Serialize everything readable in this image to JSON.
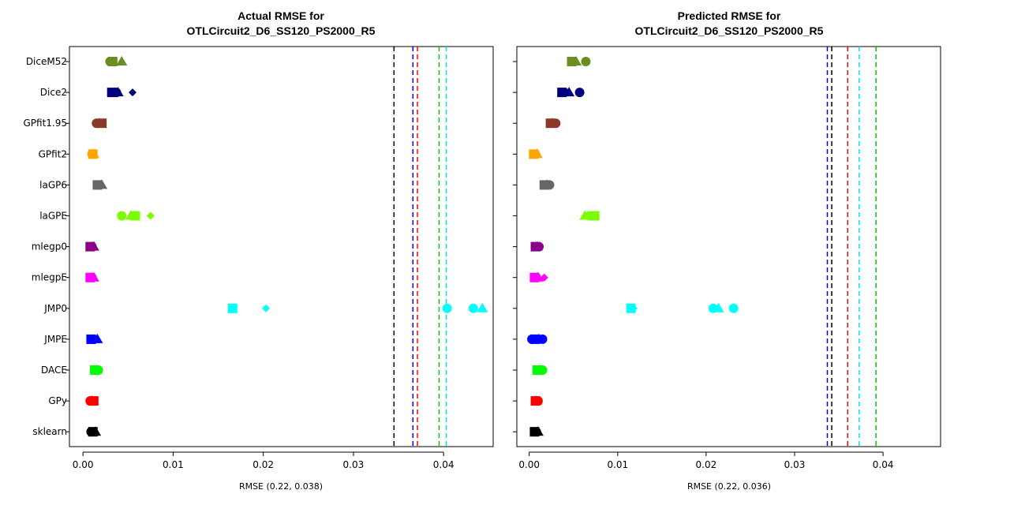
{
  "chart_data": [
    {
      "type": "scatter",
      "title": [
        "Actual RMSE for",
        "OTLCircuit2_D6_SS120_PS2000_R5"
      ],
      "xlabel": "RMSE (0.22, 0.038)",
      "ylabel": "",
      "xlim": [
        -0.0015,
        0.0455
      ],
      "xticks": [
        0.0,
        0.01,
        0.02,
        0.03,
        0.04
      ],
      "xtick_labels": [
        "0.00",
        "0.01",
        "0.02",
        "0.03",
        "0.04"
      ],
      "categories": [
        "DiceM52",
        "Dice2",
        "GPfit1.95",
        "GPfit2",
        "laGP6",
        "laGPE",
        "mlegp0",
        "mlegpE",
        "JMP0",
        "JMPE",
        "DACE",
        "GPy",
        "sklearn"
      ],
      "vlines": [
        {
          "x": 0.0345,
          "color": "#000000"
        },
        {
          "x": 0.0366,
          "color": "#0000ff"
        },
        {
          "x": 0.0371,
          "color": "#ff0000"
        },
        {
          "x": 0.0395,
          "color": "#00cc00"
        },
        {
          "x": 0.0403,
          "color": "#00e5e5"
        }
      ],
      "series": [
        {
          "category": "DiceM52",
          "color": "#6b8e23",
          "points": [
            {
              "x": 0.003,
              "shape": "circle"
            },
            {
              "x": 0.0033,
              "shape": "square"
            },
            {
              "x": 0.0043,
              "shape": "triangle"
            }
          ]
        },
        {
          "category": "Dice2",
          "color": "#00007f",
          "points": [
            {
              "x": 0.0032,
              "shape": "square"
            },
            {
              "x": 0.0037,
              "shape": "circle"
            },
            {
              "x": 0.0039,
              "shape": "triangle"
            },
            {
              "x": 0.0055,
              "shape": "diamond"
            }
          ]
        },
        {
          "category": "GPfit1.95",
          "color": "#8b3a2a",
          "points": [
            {
              "x": 0.0015,
              "shape": "circle"
            },
            {
              "x": 0.0018,
              "shape": "triangle"
            },
            {
              "x": 0.0021,
              "shape": "square"
            }
          ]
        },
        {
          "category": "GPfit2",
          "color": "#ffa500",
          "points": [
            {
              "x": 0.001,
              "shape": "circle"
            },
            {
              "x": 0.0011,
              "shape": "square"
            },
            {
              "x": 0.0012,
              "shape": "triangle"
            }
          ]
        },
        {
          "category": "laGP6",
          "color": "#666666",
          "points": [
            {
              "x": 0.0016,
              "shape": "square"
            },
            {
              "x": 0.0018,
              "shape": "circle"
            },
            {
              "x": 0.0021,
              "shape": "triangle"
            }
          ]
        },
        {
          "category": "laGPE",
          "color": "#7cfc00",
          "points": [
            {
              "x": 0.0043,
              "shape": "circle"
            },
            {
              "x": 0.0053,
              "shape": "triangle"
            },
            {
              "x": 0.0058,
              "shape": "square"
            },
            {
              "x": 0.0075,
              "shape": "diamond"
            }
          ]
        },
        {
          "category": "mlegp0",
          "color": "#8b008b",
          "points": [
            {
              "x": 0.0008,
              "shape": "square"
            },
            {
              "x": 0.001,
              "shape": "circle"
            },
            {
              "x": 0.0012,
              "shape": "triangle"
            }
          ]
        },
        {
          "category": "mlegpE",
          "color": "#ff00ff",
          "points": [
            {
              "x": 0.0008,
              "shape": "square"
            },
            {
              "x": 0.001,
              "shape": "circle"
            },
            {
              "x": 0.0012,
              "shape": "triangle"
            }
          ]
        },
        {
          "category": "JMP0",
          "color": "#00ffff",
          "points": [
            {
              "x": 0.0166,
              "shape": "square"
            },
            {
              "x": 0.0203,
              "shape": "diamond"
            },
            {
              "x": 0.0404,
              "shape": "circle"
            },
            {
              "x": 0.0433,
              "shape": "circle"
            },
            {
              "x": 0.0443,
              "shape": "triangle"
            }
          ]
        },
        {
          "category": "JMPE",
          "color": "#0000ff",
          "points": [
            {
              "x": 0.0009,
              "shape": "square"
            },
            {
              "x": 0.0012,
              "shape": "circle"
            },
            {
              "x": 0.0016,
              "shape": "triangle"
            }
          ]
        },
        {
          "category": "DACE",
          "color": "#00ff00",
          "points": [
            {
              "x": 0.0013,
              "shape": "square"
            },
            {
              "x": 0.0015,
              "shape": "triangle"
            },
            {
              "x": 0.0017,
              "shape": "circle"
            }
          ]
        },
        {
          "category": "GPy",
          "color": "#ff0000",
          "points": [
            {
              "x": 0.0008,
              "shape": "circle"
            },
            {
              "x": 0.001,
              "shape": "triangle"
            },
            {
              "x": 0.0012,
              "shape": "square"
            }
          ]
        },
        {
          "category": "sklearn",
          "color": "#000000",
          "points": [
            {
              "x": 0.0009,
              "shape": "circle"
            },
            {
              "x": 0.0011,
              "shape": "square"
            },
            {
              "x": 0.0014,
              "shape": "triangle"
            }
          ]
        }
      ]
    },
    {
      "type": "scatter",
      "title": [
        "Predicted RMSE for",
        "OTLCircuit2_D6_SS120_PS2000_R5"
      ],
      "xlabel": "RMSE (0.22, 0.036)",
      "ylabel": "",
      "xlim": [
        -0.0014,
        0.0465
      ],
      "xticks": [
        0.0,
        0.01,
        0.02,
        0.03,
        0.04
      ],
      "xtick_labels": [
        "0.00",
        "0.01",
        "0.02",
        "0.03",
        "0.04"
      ],
      "categories": [
        "DiceM52",
        "Dice2",
        "GPfit1.95",
        "GPfit2",
        "laGP6",
        "laGPE",
        "mlegp0",
        "mlegpE",
        "JMP0",
        "JMPE",
        "DACE",
        "GPy",
        "sklearn"
      ],
      "vlines": [
        {
          "x": 0.0337,
          "color": "#0000ff"
        },
        {
          "x": 0.0342,
          "color": "#000000"
        },
        {
          "x": 0.036,
          "color": "#ff0000"
        },
        {
          "x": 0.0373,
          "color": "#00e5e5"
        },
        {
          "x": 0.0392,
          "color": "#00cc00"
        }
      ],
      "series": [
        {
          "category": "DiceM52",
          "color": "#6b8e23",
          "points": [
            {
              "x": 0.0048,
              "shape": "square"
            },
            {
              "x": 0.0053,
              "shape": "triangle"
            },
            {
              "x": 0.0064,
              "shape": "circle"
            }
          ]
        },
        {
          "category": "Dice2",
          "color": "#00007f",
          "points": [
            {
              "x": 0.0037,
              "shape": "square"
            },
            {
              "x": 0.0043,
              "shape": "diamond"
            },
            {
              "x": 0.0045,
              "shape": "triangle"
            },
            {
              "x": 0.0057,
              "shape": "circle"
            }
          ]
        },
        {
          "category": "GPfit1.95",
          "color": "#8b3a2a",
          "points": [
            {
              "x": 0.0024,
              "shape": "square"
            },
            {
              "x": 0.0026,
              "shape": "triangle"
            },
            {
              "x": 0.003,
              "shape": "circle"
            }
          ]
        },
        {
          "category": "GPfit2",
          "color": "#ffa500",
          "points": [
            {
              "x": 0.0005,
              "shape": "square"
            },
            {
              "x": 0.0007,
              "shape": "circle"
            },
            {
              "x": 0.0009,
              "shape": "triangle"
            }
          ]
        },
        {
          "category": "laGP6",
          "color": "#666666",
          "points": [
            {
              "x": 0.0017,
              "shape": "square"
            },
            {
              "x": 0.002,
              "shape": "triangle"
            },
            {
              "x": 0.0023,
              "shape": "circle"
            }
          ]
        },
        {
          "category": "laGPE",
          "color": "#7cfc00",
          "points": [
            {
              "x": 0.0063,
              "shape": "triangle"
            },
            {
              "x": 0.0068,
              "shape": "circle"
            },
            {
              "x": 0.0074,
              "shape": "square"
            }
          ]
        },
        {
          "category": "mlegp0",
          "color": "#8b008b",
          "points": [
            {
              "x": 0.0007,
              "shape": "square"
            },
            {
              "x": 0.0009,
              "shape": "triangle"
            },
            {
              "x": 0.0011,
              "shape": "circle"
            }
          ]
        },
        {
          "category": "mlegpE",
          "color": "#ff00ff",
          "points": [
            {
              "x": 0.0006,
              "shape": "square"
            },
            {
              "x": 0.0008,
              "shape": "circle"
            },
            {
              "x": 0.001,
              "shape": "triangle"
            },
            {
              "x": 0.0017,
              "shape": "diamond"
            }
          ]
        },
        {
          "category": "JMP0",
          "color": "#00ffff",
          "points": [
            {
              "x": 0.0115,
              "shape": "square"
            },
            {
              "x": 0.0118,
              "shape": "diamond"
            },
            {
              "x": 0.0208,
              "shape": "circle"
            },
            {
              "x": 0.0214,
              "shape": "triangle"
            },
            {
              "x": 0.0231,
              "shape": "circle"
            }
          ]
        },
        {
          "category": "JMPE",
          "color": "#0000ff",
          "points": [
            {
              "x": 0.0003,
              "shape": "circle"
            },
            {
              "x": 0.0007,
              "shape": "square"
            },
            {
              "x": 0.0011,
              "shape": "triangle"
            },
            {
              "x": 0.0015,
              "shape": "circle"
            }
          ]
        },
        {
          "category": "DACE",
          "color": "#00ff00",
          "points": [
            {
              "x": 0.0009,
              "shape": "square"
            },
            {
              "x": 0.0012,
              "shape": "triangle"
            },
            {
              "x": 0.0015,
              "shape": "circle"
            }
          ]
        },
        {
          "category": "GPy",
          "color": "#ff0000",
          "points": [
            {
              "x": 0.0007,
              "shape": "square"
            },
            {
              "x": 0.0008,
              "shape": "triangle"
            },
            {
              "x": 0.001,
              "shape": "circle"
            }
          ]
        },
        {
          "category": "sklearn",
          "color": "#000000",
          "points": [
            {
              "x": 0.0006,
              "shape": "square"
            },
            {
              "x": 0.0008,
              "shape": "circle"
            },
            {
              "x": 0.001,
              "shape": "triangle"
            }
          ]
        }
      ]
    }
  ]
}
